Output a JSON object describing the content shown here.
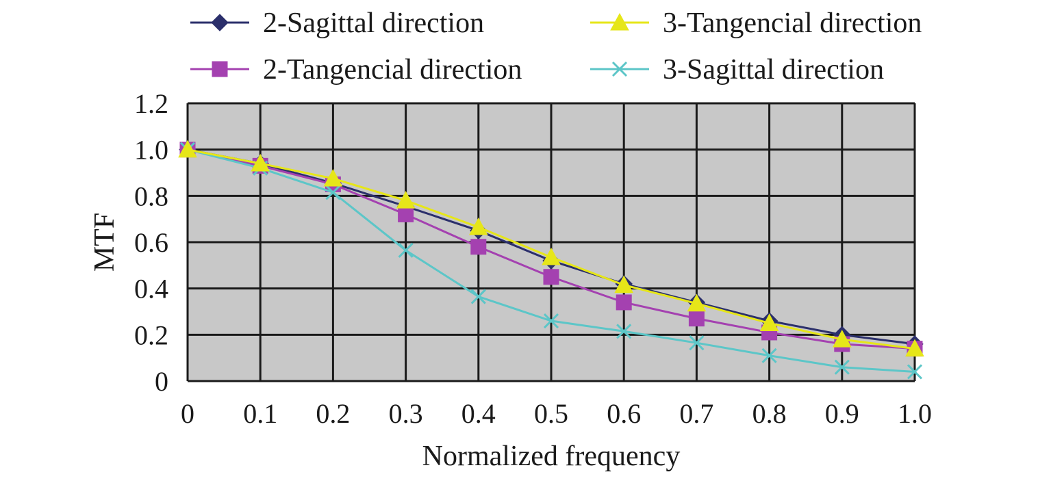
{
  "chart_data": {
    "type": "line",
    "xlabel": "Normalized frequency",
    "ylabel": "MTF",
    "x": [
      0,
      0.1,
      0.2,
      0.3,
      0.4,
      0.5,
      0.6,
      0.7,
      0.8,
      0.9,
      1.0
    ],
    "x_tick_labels": [
      "0",
      "0.1",
      "0.2",
      "0.3",
      "0.4",
      "0.5",
      "0.6",
      "0.7",
      "0.8",
      "0.9",
      "1.0"
    ],
    "y_ticks": [
      0,
      0.2,
      0.4,
      0.6,
      0.8,
      1.0,
      1.2
    ],
    "y_tick_labels": [
      "0",
      "0.2",
      "0.4",
      "0.6",
      "0.8",
      "1.0",
      "1.2"
    ],
    "xlim": [
      0,
      1.0
    ],
    "ylim": [
      0,
      1.2
    ],
    "grid": true,
    "plot_background": "#c8c8c8",
    "legend_position": "top",
    "series": [
      {
        "name": "2-Sagittal direction",
        "color": "#2b2f6b",
        "marker": "diamond",
        "values": [
          1.0,
          0.94,
          0.855,
          0.755,
          0.65,
          0.52,
          0.42,
          0.34,
          0.26,
          0.2,
          0.16
        ]
      },
      {
        "name": "2-Tangencial direction",
        "color": "#a441b0",
        "marker": "square",
        "values": [
          1.0,
          0.93,
          0.85,
          0.72,
          0.58,
          0.45,
          0.34,
          0.27,
          0.21,
          0.16,
          0.14
        ]
      },
      {
        "name": "3-Tangencial direction",
        "color": "#e6e619",
        "marker": "triangle",
        "values": [
          1.0,
          0.94,
          0.875,
          0.78,
          0.665,
          0.535,
          0.415,
          0.335,
          0.25,
          0.18,
          0.14
        ]
      },
      {
        "name": "3-Sagittal direction",
        "color": "#5cc6c8",
        "marker": "x",
        "values": [
          1.0,
          0.92,
          0.815,
          0.565,
          0.365,
          0.26,
          0.215,
          0.165,
          0.11,
          0.06,
          0.04
        ]
      }
    ]
  }
}
